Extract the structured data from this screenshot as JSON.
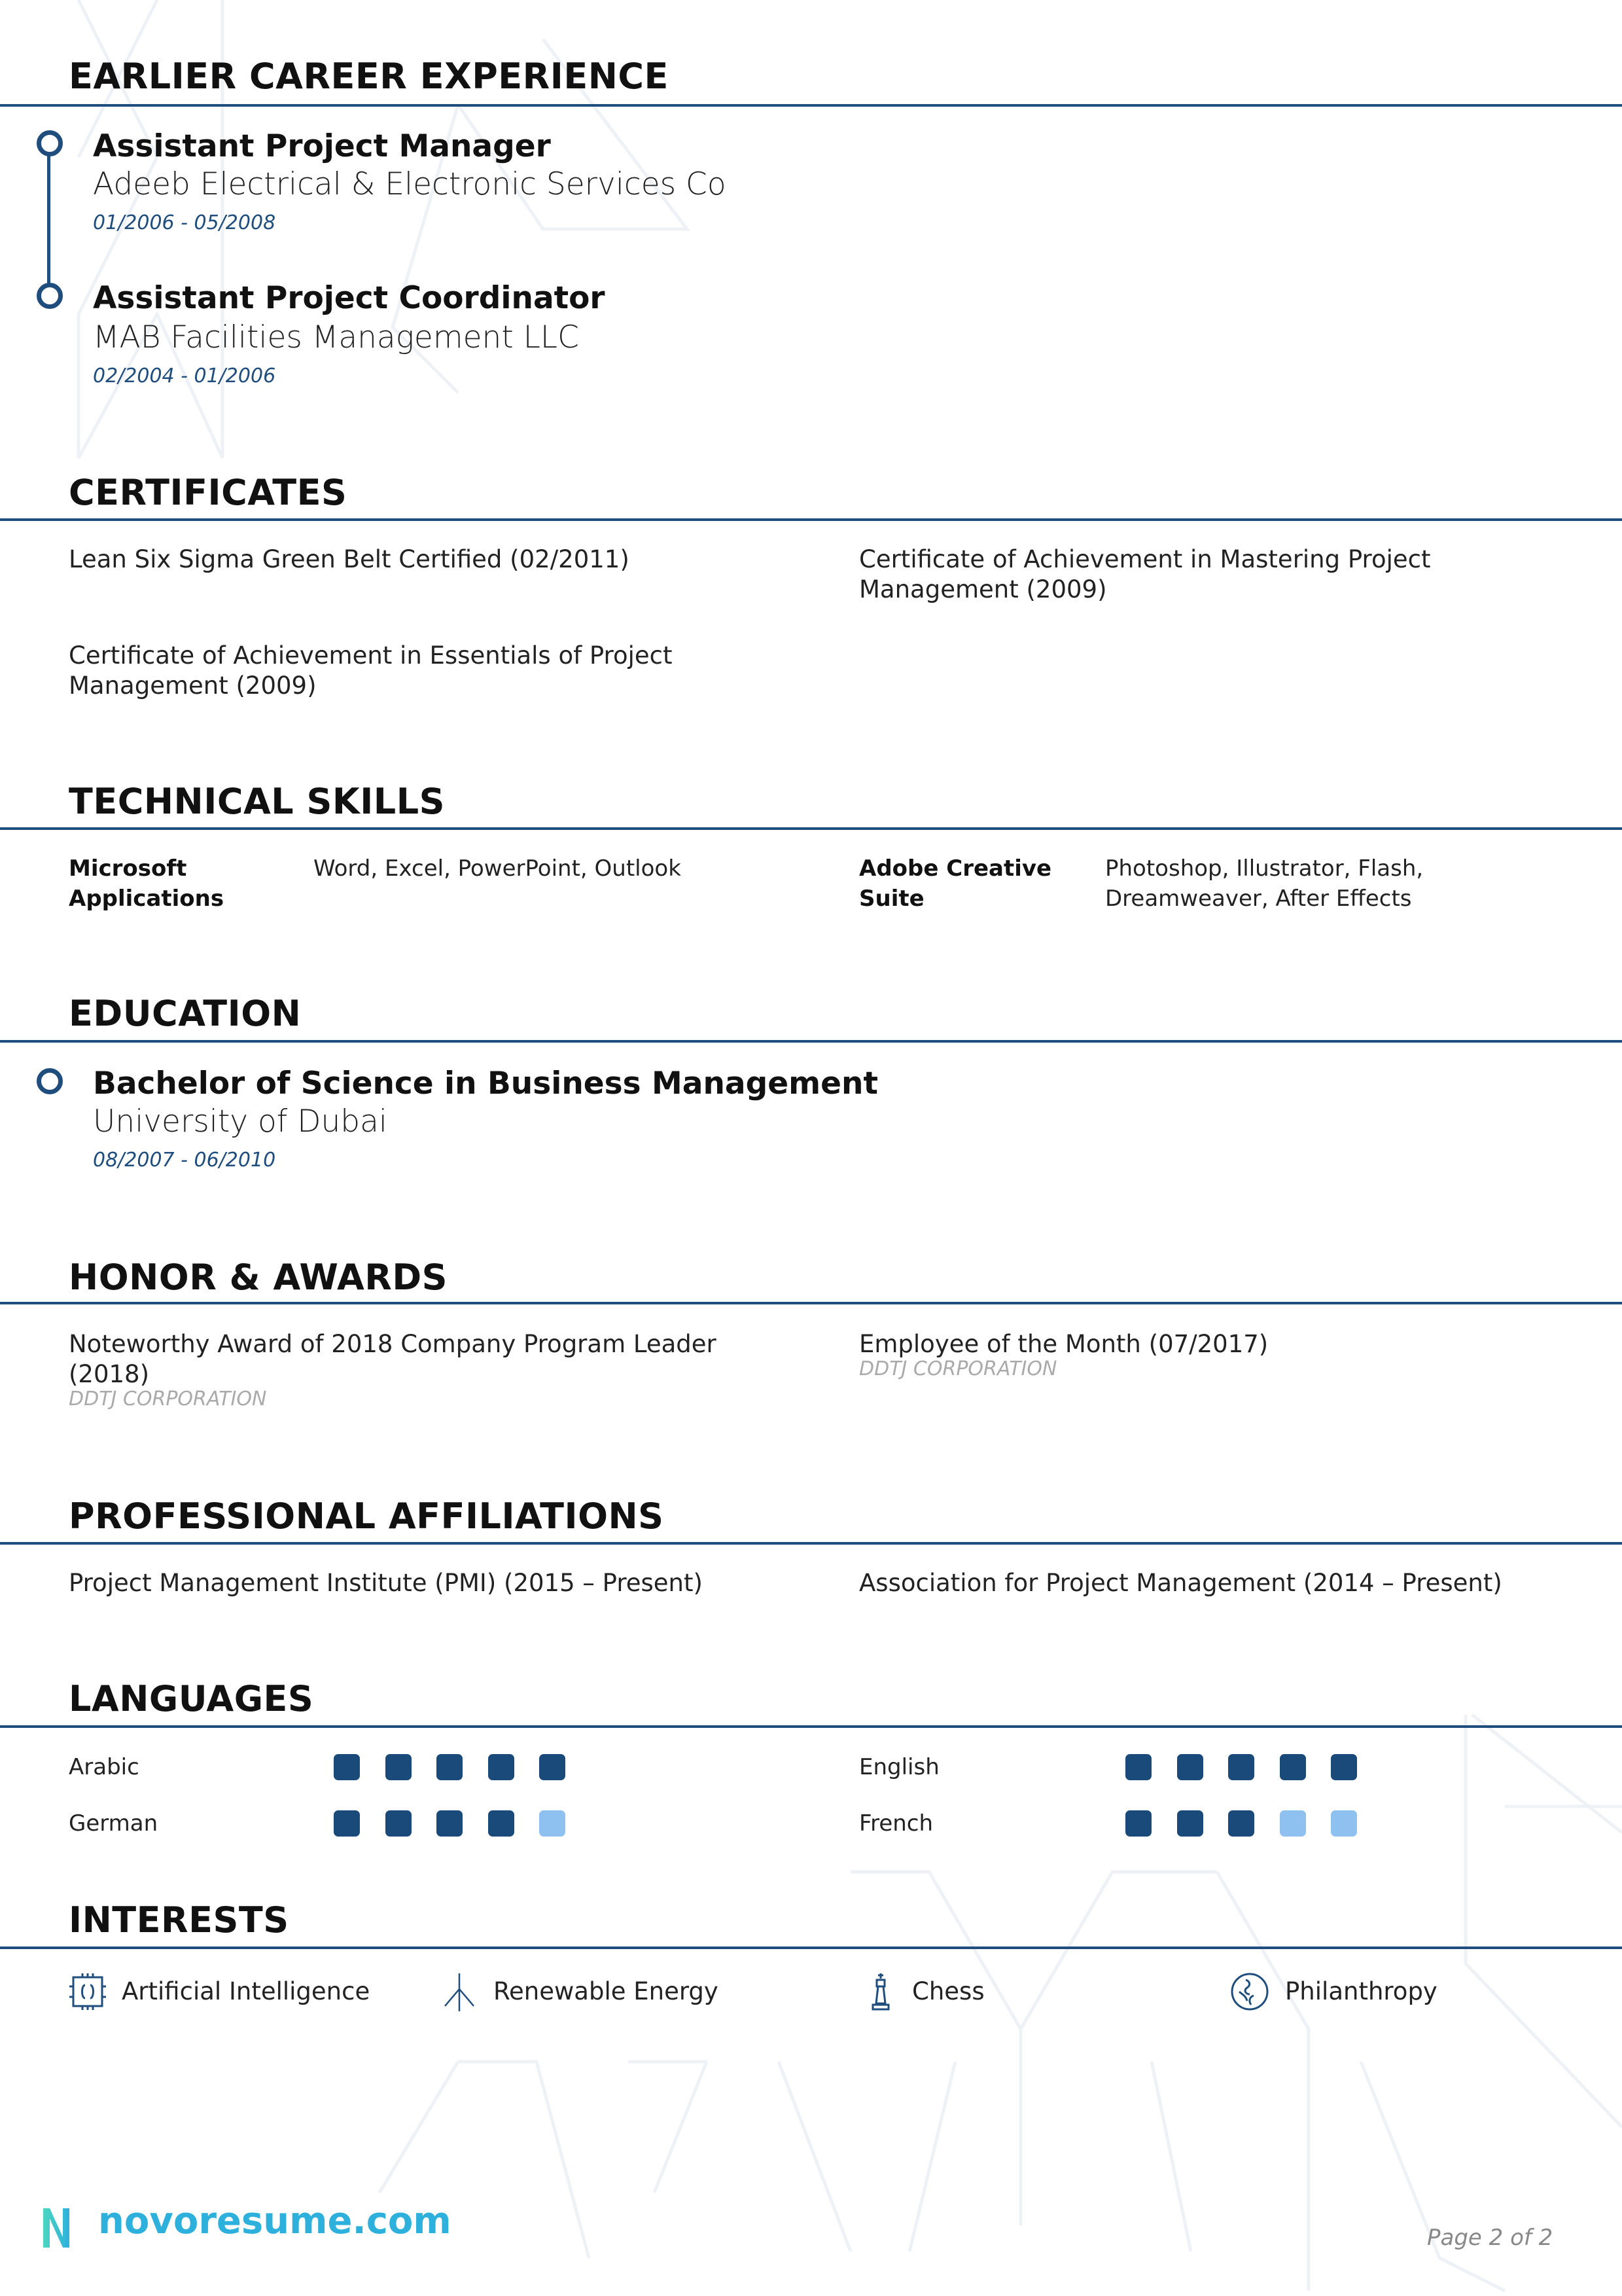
{
  "colors": {
    "accent": "#1f4e7e",
    "dot_filled": "#1a4a7a",
    "dot_empty": "#8ec0f0",
    "logo": "#2eb0dc"
  },
  "experience": {
    "heading": "EARLIER CAREER EXPERIENCE",
    "jobs": [
      {
        "title": "Assistant Project Manager",
        "company": "Adeeb Electrical & Electronic Services Co",
        "dates": "01/2006 - 05/2008"
      },
      {
        "title": "Assistant Project Coordinator",
        "company": "MAB Facilities Management LLC",
        "dates": "02/2004 - 01/2006"
      }
    ]
  },
  "certificates": {
    "heading": "CERTIFICATES",
    "items": [
      {
        "line1": "Lean Six Sigma Green Belt Certified (02/2011)",
        "line2": ""
      },
      {
        "line1": "Certificate of Achievement in Mastering Project",
        "line2": "Management (2009)"
      },
      {
        "line1": "Certificate of Achievement in Essentials of Project",
        "line2": "Management (2009)"
      }
    ]
  },
  "skills": {
    "heading": "TECHNICAL SKILLS",
    "items": [
      {
        "label1": "Microsoft",
        "label2": "Applications",
        "value1": "Word, Excel, PowerPoint, Outlook",
        "value2": ""
      },
      {
        "label1": "Adobe Creative",
        "label2": "Suite",
        "value1": "Photoshop, Illustrator, Flash,",
        "value2": "Dreamweaver, After Effects"
      }
    ]
  },
  "education": {
    "heading": "EDUCATION",
    "degree": "Bachelor of Science in Business Management",
    "school": "University of Dubai",
    "dates": "08/2007 - 06/2010"
  },
  "awards": {
    "heading": "HONOR & AWARDS",
    "items": [
      {
        "line1": "Noteworthy Award of 2018 Company Program Leader",
        "line2": "(2018)",
        "org": "DDTJ CORPORATION"
      },
      {
        "line1": "Employee of the Month (07/2017)",
        "line2": "",
        "org": "DDTJ CORPORATION"
      }
    ]
  },
  "affiliations": {
    "heading": "PROFESSIONAL AFFILIATIONS",
    "items": [
      "Project Management Institute (PMI) (2015 – Present)",
      "Association for Project Management (2014 – Present)"
    ]
  },
  "languages": {
    "heading": "LANGUAGES",
    "items": [
      {
        "name": "Arabic",
        "level": 5,
        "max": 5
      },
      {
        "name": "English",
        "level": 5,
        "max": 5
      },
      {
        "name": "German",
        "level": 4,
        "max": 5
      },
      {
        "name": "French",
        "level": 3,
        "max": 5
      }
    ]
  },
  "interests": {
    "heading": "INTERESTS",
    "items": [
      {
        "label": "Artificial Intelligence",
        "icon": "chip-icon"
      },
      {
        "label": "Renewable Energy",
        "icon": "wind-turbine-icon"
      },
      {
        "label": "Chess",
        "icon": "chess-king-icon"
      },
      {
        "label": "Philanthropy",
        "icon": "globe-hands-icon"
      }
    ]
  },
  "footer": {
    "logo": "novoresume.com",
    "page": "Page 2 of 2"
  }
}
